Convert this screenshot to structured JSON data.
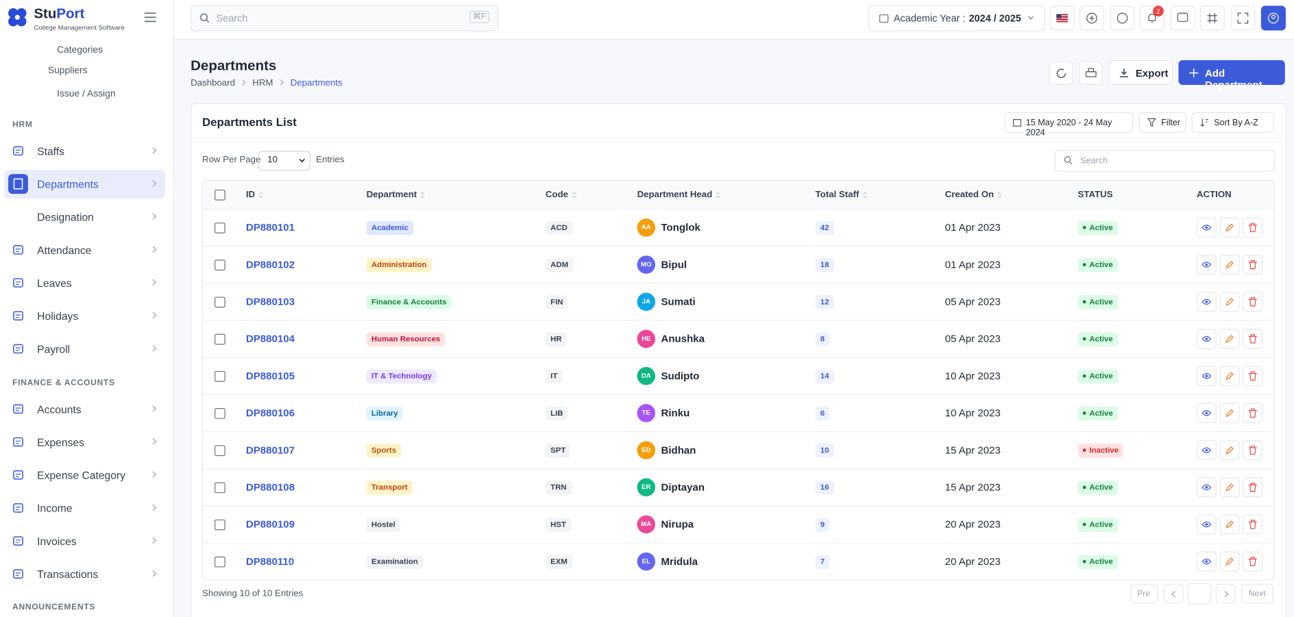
{
  "brand": {
    "name_start": "Stu",
    "name_end": "Port",
    "tagline": "College Management Software"
  },
  "sidebar": {
    "top_items": [
      "Categories",
      "Suppliers",
      "Issue / Assign"
    ],
    "sections": [
      {
        "title": "HRM",
        "items": [
          "Staffs",
          "Departments",
          "Designation",
          "Attendance",
          "Leaves",
          "Holidays",
          "Payroll"
        ]
      },
      {
        "title": "FINANCE & ACCOUNTS",
        "items": [
          "Accounts",
          "Expenses",
          "Expense Category",
          "Income",
          "Invoices",
          "Transactions"
        ]
      },
      {
        "title": "ANNOUNCEMENTS",
        "items": []
      }
    ]
  },
  "topbar": {
    "search_placeholder": "Search",
    "search_shortcut": "⌘F",
    "academic_year_label": "Academic Year :",
    "academic_year": "2024 / 2025",
    "notification_count": 2
  },
  "page": {
    "title": "Departments",
    "breadcrumb": [
      "Dashboard",
      "HRM",
      "Departments"
    ],
    "export": "Export",
    "add": "Add Department"
  },
  "card": {
    "title": "Departments List",
    "date_range": "15 May 2020 - 24 May 2024",
    "filter": "Filter",
    "sort": "Sort By A-Z",
    "rows_per_page_label": "Row Per Page",
    "rows_per_page": 10,
    "entries": "Entries",
    "search_placeholder": "Search",
    "table": {
      "columns": [
        "ID",
        "Department",
        "Code",
        "Department Head",
        "Total Staff",
        "Created On",
        "STATUS",
        "ACTION"
      ],
      "rows": [
        [
          "DP880101",
          "Academic",
          "ACD",
          "AA",
          "Tonglok",
          42,
          "01 Apr 2023",
          "Active"
        ],
        [
          "DP880102",
          "Administration",
          "ADM",
          "MO",
          "Bipul",
          18,
          "01 Apr 2023",
          "Active"
        ],
        [
          "DP880103",
          "Finance & Accounts",
          "FIN",
          "JA",
          "Sumati",
          12,
          "05 Apr 2023",
          "Active"
        ],
        [
          "DP880104",
          "Human Resources",
          "HR",
          "HE",
          "Anushka",
          8,
          "05 Apr 2023",
          "Active"
        ],
        [
          "DP880105",
          "IT & Technology",
          "IT",
          "DA",
          "Sudipto",
          14,
          "10 Apr 2023",
          "Active"
        ],
        [
          "DP880106",
          "Library",
          "LIB",
          "TE",
          "Rinku",
          6,
          "10 Apr 2023",
          "Active"
        ],
        [
          "DP880107",
          "Sports",
          "SPT",
          "ED",
          "Bidhan",
          10,
          "15 Apr 2023",
          "Inactive"
        ],
        [
          "DP880108",
          "Transport",
          "TRN",
          "ER",
          "Diptayan",
          16,
          "15 Apr 2023",
          "Active"
        ],
        [
          "DP880109",
          "Hostel",
          "HST",
          "MA",
          "Nirupa",
          9,
          "20 Apr 2023",
          "Active"
        ],
        [
          "DP880110",
          "Examination",
          "EXM",
          "EL",
          "Mridula",
          7,
          "20 Apr 2023",
          "Active"
        ]
      ]
    },
    "footer": "Showing 10 of 10 Entries",
    "prev": "Pre",
    "next": "Next"
  }
}
